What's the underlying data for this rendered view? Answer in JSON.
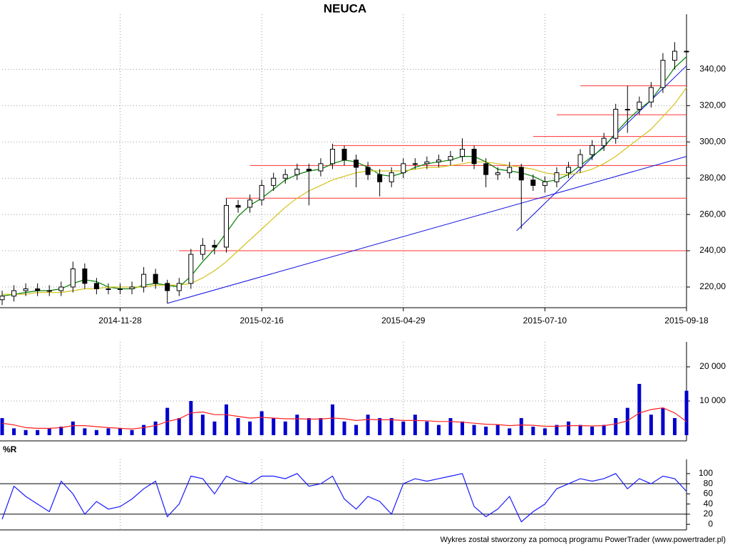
{
  "chart_data": [
    {
      "type": "candlestick",
      "title": "NEUCA",
      "categories": [
        null,
        null,
        null,
        null,
        null,
        null,
        null,
        null,
        null,
        null,
        "2014-11-28",
        null,
        null,
        null,
        null,
        null,
        null,
        null,
        null,
        null,
        null,
        null,
        "2015-02-16",
        null,
        null,
        null,
        null,
        null,
        null,
        null,
        null,
        null,
        null,
        null,
        "2015-04-29",
        null,
        null,
        null,
        null,
        null,
        null,
        null,
        null,
        null,
        null,
        null,
        "2015-07-10",
        null,
        null,
        null,
        null,
        null,
        null,
        null,
        null,
        null,
        null,
        null,
        "2015-09-18"
      ],
      "open": [
        213,
        215,
        218,
        219,
        218,
        218,
        220,
        230,
        222,
        219,
        219,
        219,
        220,
        227,
        222,
        218,
        222,
        238,
        243,
        242,
        265,
        264,
        268,
        276,
        280,
        282,
        285,
        284,
        288,
        296,
        290,
        286,
        282,
        278,
        283,
        288,
        288,
        289,
        290,
        292,
        296,
        288,
        282,
        283,
        286,
        279,
        276,
        278,
        283,
        286,
        293,
        298,
        302,
        318,
        318,
        322,
        330,
        345,
        350
      ],
      "high": [
        218,
        221,
        222,
        222,
        221,
        223,
        234,
        233,
        225,
        222,
        222,
        223,
        231,
        230,
        224,
        225,
        241,
        247,
        246,
        269,
        268,
        271,
        279,
        283,
        285,
        288,
        288,
        291,
        299,
        298,
        293,
        289,
        285,
        286,
        291,
        291,
        292,
        293,
        295,
        302,
        298,
        291,
        286,
        289,
        288,
        282,
        281,
        286,
        289,
        296,
        301,
        305,
        321,
        331,
        325,
        333,
        349,
        355,
        356
      ],
      "low": [
        210,
        212,
        215,
        215,
        215,
        215,
        217,
        219,
        216,
        216,
        216,
        216,
        217,
        219,
        211,
        215,
        219,
        235,
        238,
        239,
        261,
        261,
        265,
        273,
        277,
        279,
        265,
        281,
        285,
        287,
        275,
        279,
        270,
        275,
        280,
        285,
        285,
        286,
        287,
        289,
        285,
        275,
        279,
        280,
        252,
        273,
        272,
        275,
        280,
        283,
        290,
        295,
        299,
        305,
        315,
        319,
        327,
        340,
        347
      ],
      "close": [
        215,
        218,
        219,
        218,
        218,
        220,
        230,
        222,
        219,
        219,
        219,
        220,
        227,
        222,
        218,
        222,
        238,
        243,
        242,
        265,
        264,
        268,
        276,
        280,
        282,
        285,
        284,
        288,
        296,
        290,
        286,
        282,
        278,
        283,
        288,
        288,
        289,
        290,
        292,
        296,
        288,
        282,
        283,
        286,
        279,
        276,
        278,
        283,
        286,
        293,
        298,
        302,
        318,
        318,
        322,
        330,
        345,
        350,
        350
      ],
      "series": [
        {
          "color": "#008000",
          "values": [
            215,
            216,
            217,
            218,
            218,
            219,
            222,
            224,
            223,
            220,
            219,
            219,
            221,
            222,
            221,
            220,
            226,
            234,
            241,
            250,
            259,
            265,
            269,
            274,
            279,
            282,
            284,
            285,
            288,
            290,
            289,
            286,
            282,
            281,
            283,
            286,
            288,
            289,
            290,
            292,
            292,
            289,
            285,
            284,
            283,
            281,
            278,
            279,
            282,
            287,
            292,
            297,
            305,
            312,
            318,
            323,
            332,
            341,
            347
          ]
        },
        {
          "color": "#d4c21a",
          "values": [
            216,
            216,
            216,
            217,
            217,
            217,
            218,
            219,
            219,
            220,
            220,
            220,
            220,
            221,
            221,
            221,
            222,
            225,
            229,
            234,
            240,
            246,
            252,
            258,
            264,
            269,
            273,
            276,
            279,
            281,
            283,
            284,
            284,
            284,
            284,
            285,
            286,
            286,
            287,
            288,
            289,
            289,
            288,
            287,
            286,
            285,
            283,
            282,
            282,
            283,
            285,
            288,
            292,
            297,
            302,
            307,
            314,
            321,
            330
          ]
        }
      ],
      "support_lines": {
        "color": "#ff3030",
        "start": [
          15,
          19,
          21,
          28,
          45,
          47,
          49
        ],
        "values": [
          240,
          269,
          287,
          298,
          303,
          315,
          331
        ]
      },
      "trend_lines": {
        "color": "#1010e0",
        "lines": [
          {
            "x": [
              14,
              58
            ],
            "y": [
              211,
              292
            ]
          },
          {
            "x": [
              43.6,
              58
            ],
            "y": [
              251,
              342
            ]
          }
        ]
      },
      "ylim": [
        208.6,
        370.4
      ],
      "yticks": [
        {
          "value": 220,
          "label": "220,00"
        },
        {
          "value": 240,
          "label": "240,00"
        },
        {
          "value": 260,
          "label": "260,00"
        },
        {
          "value": 280,
          "label": "280,00"
        },
        {
          "value": 300,
          "label": "300,00"
        },
        {
          "value": 320,
          "label": "320,00"
        },
        {
          "value": 340,
          "label": "340,00"
        }
      ],
      "grid": true
    },
    {
      "type": "bar",
      "color": "#0000cc",
      "values": [
        5000,
        2000,
        1500,
        1500,
        2000,
        2500,
        4000,
        2000,
        1500,
        2000,
        2000,
        1500,
        3000,
        4000,
        8000,
        5000,
        10000,
        6000,
        4000,
        9000,
        5000,
        4000,
        7000,
        5000,
        4000,
        6000,
        5000,
        5000,
        9000,
        4000,
        3000,
        6000,
        5000,
        5000,
        4000,
        6000,
        4000,
        3000,
        5000,
        4000,
        3000,
        2500,
        3000,
        2000,
        5000,
        2500,
        2000,
        3000,
        4000,
        3000,
        2500,
        3000,
        5000,
        8000,
        15000,
        6000,
        8000,
        5000,
        13000
      ],
      "series": [
        {
          "color": "#ff2020",
          "values": [
            3500,
            3000,
            2200,
            2000,
            2000,
            2200,
            2800,
            2800,
            2500,
            2200,
            2000,
            1800,
            2200,
            2800,
            4000,
            4800,
            6500,
            6800,
            6000,
            6000,
            5500,
            5000,
            5200,
            5000,
            4800,
            4800,
            4700,
            4700,
            5000,
            4800,
            4300,
            4600,
            4500,
            4500,
            4300,
            4300,
            4200,
            4000,
            4000,
            3800,
            3500,
            3200,
            3100,
            2800,
            3000,
            2900,
            2600,
            2600,
            2800,
            2800,
            2700,
            2800,
            3300,
            4200,
            6500,
            7500,
            8000,
            6500,
            4000
          ]
        }
      ],
      "ylim": [
        -1667,
        27300
      ],
      "yticks": [
        {
          "value": 10000,
          "label": "10 000"
        },
        {
          "value": 20000,
          "label": "20 000"
        }
      ],
      "grid": true
    },
    {
      "type": "line",
      "title": "%R",
      "color": "#1a1aff",
      "values": [
        10,
        75,
        55,
        40,
        25,
        85,
        60,
        20,
        45,
        30,
        35,
        50,
        70,
        85,
        15,
        40,
        95,
        90,
        60,
        95,
        85,
        80,
        95,
        95,
        90,
        100,
        75,
        80,
        95,
        50,
        30,
        55,
        45,
        20,
        80,
        90,
        85,
        90,
        95,
        100,
        35,
        15,
        30,
        55,
        5,
        25,
        40,
        70,
        80,
        90,
        85,
        90,
        100,
        70,
        90,
        80,
        95,
        90,
        65
      ],
      "levels": [
        20,
        80
      ],
      "ylim": [
        -11,
        128
      ],
      "yticks": [
        0,
        20,
        40,
        60,
        80,
        100
      ],
      "grid": false
    }
  ],
  "footer": "Wykres został stworzony za pomocą programu PowerTrader (www.powertrader.pl)"
}
